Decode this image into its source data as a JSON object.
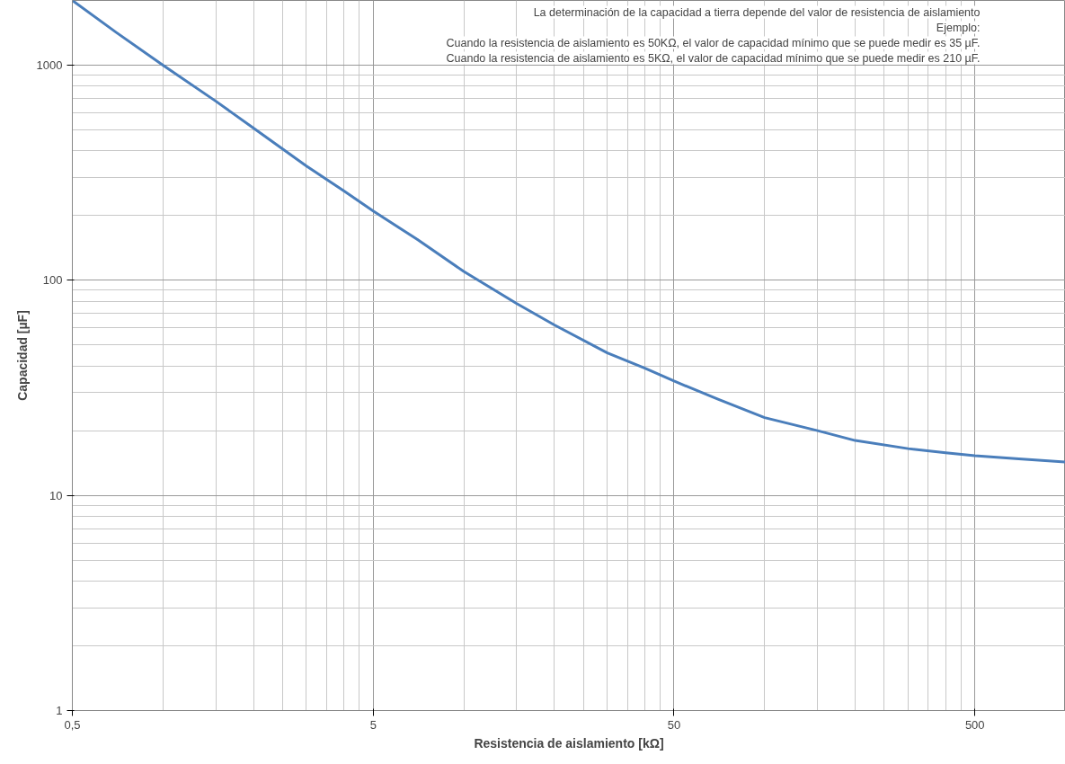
{
  "chart_data": {
    "type": "line",
    "xlabel": "Resistencia de aislamiento [kΩ]",
    "ylabel": "Capacidad [µF]",
    "annotations": [
      "La determinación de la capacidad a tierra depende del valor de resistencia de aislamiento",
      "Ejemplo:",
      "Cuando la resistencia de aislamiento es 50KΩ, el valor de capacidad mínimo que se puede medir es 35 µF.",
      "Cuando la resistencia de aislamiento es 5KΩ, el valor de capacidad mínimo que se puede medir es 210 µF."
    ],
    "log": "xy",
    "grid": true,
    "xlim": [
      0.5,
      1000
    ],
    "ylim": [
      1,
      2000
    ],
    "xticks": [
      {
        "value": 0.5,
        "label": "0,5"
      },
      {
        "value": 1,
        "label": null
      },
      {
        "value": 1.5,
        "label": null
      },
      {
        "value": 2,
        "label": null
      },
      {
        "value": 2.5,
        "label": null
      },
      {
        "value": 3,
        "label": null
      },
      {
        "value": 3.5,
        "label": null
      },
      {
        "value": 4,
        "label": null
      },
      {
        "value": 4.5,
        "label": null
      },
      5,
      {
        "value": 10,
        "label": null
      },
      {
        "value": 15,
        "label": null
      },
      {
        "value": 20,
        "label": null
      },
      {
        "value": 25,
        "label": null
      },
      {
        "value": 30,
        "label": null
      },
      {
        "value": 35,
        "label": null
      },
      {
        "value": 40,
        "label": null
      },
      {
        "value": 45,
        "label": null
      },
      50,
      {
        "value": 100,
        "label": null
      },
      {
        "value": 150,
        "label": null
      },
      {
        "value": 200,
        "label": null
      },
      {
        "value": 250,
        "label": null
      },
      {
        "value": 300,
        "label": null
      },
      {
        "value": 350,
        "label": null
      },
      {
        "value": 400,
        "label": null
      },
      {
        "value": 450,
        "label": null
      },
      500
    ],
    "yticks": [
      1,
      {
        "value": 2,
        "label": null
      },
      {
        "value": 3,
        "label": null
      },
      {
        "value": 4,
        "label": null
      },
      {
        "value": 5,
        "label": null
      },
      {
        "value": 6,
        "label": null
      },
      {
        "value": 7,
        "label": null
      },
      {
        "value": 8,
        "label": null
      },
      {
        "value": 9,
        "label": null
      },
      10,
      {
        "value": 20,
        "label": null
      },
      {
        "value": 30,
        "label": null
      },
      {
        "value": 40,
        "label": null
      },
      {
        "value": 50,
        "label": null
      },
      {
        "value": 60,
        "label": null
      },
      {
        "value": 70,
        "label": null
      },
      {
        "value": 80,
        "label": null
      },
      {
        "value": 90,
        "label": null
      },
      100,
      {
        "value": 200,
        "label": null
      },
      {
        "value": 300,
        "label": null
      },
      {
        "value": 400,
        "label": null
      },
      {
        "value": 500,
        "label": null
      },
      {
        "value": 600,
        "label": null
      },
      {
        "value": 700,
        "label": null
      },
      {
        "value": 800,
        "label": null
      },
      {
        "value": 900,
        "label": null
      },
      1000
    ],
    "x": [
      0.5,
      0.7,
      1,
      1.5,
      2,
      3,
      4,
      5,
      7,
      10,
      15,
      20,
      30,
      40,
      50,
      70,
      100,
      150,
      200,
      300,
      400,
      500,
      700,
      1000
    ],
    "series": [
      {
        "color": "#4a7ebb",
        "values": [
          2000,
          1420,
          1000,
          680,
          510,
          340,
          260,
          210,
          155,
          110,
          78,
          62,
          46,
          39,
          34,
          28,
          23,
          20,
          18,
          16.5,
          15.8,
          15.3,
          14.8,
          14.3
        ]
      }
    ]
  }
}
